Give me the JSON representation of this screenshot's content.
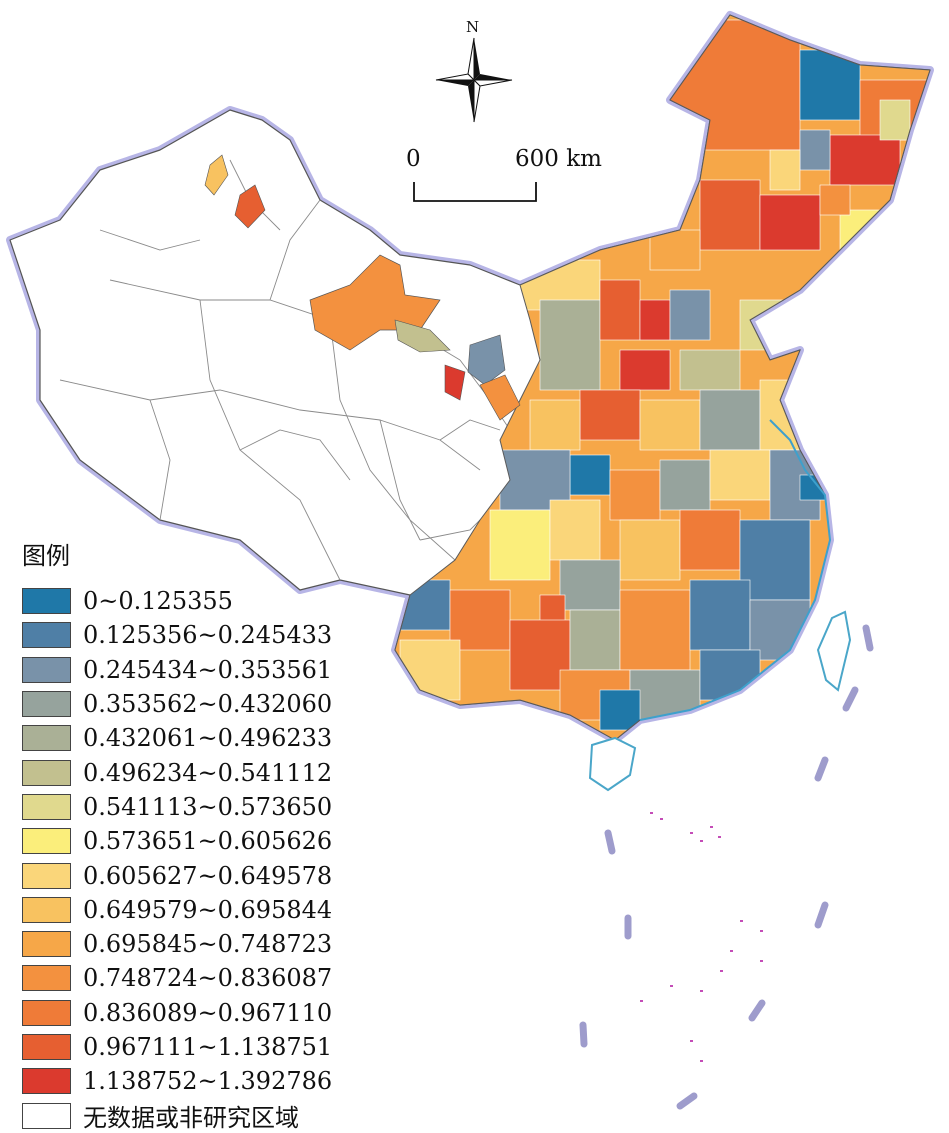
{
  "compass": {
    "north_label": "N"
  },
  "scale_bar": {
    "zero_label": "0",
    "max_label": "600 km"
  },
  "legend": {
    "title": "图例",
    "items": [
      {
        "label": "0~0.125355",
        "color": "#1f78a8"
      },
      {
        "label": "0.125356~0.245433",
        "color": "#4f7fa6"
      },
      {
        "label": "0.245434~0.353561",
        "color": "#7992a9"
      },
      {
        "label": "0.353562~0.432060",
        "color": "#96a39d"
      },
      {
        "label": "0.432061~0.496233",
        "color": "#aab096"
      },
      {
        "label": "0.496234~0.541112",
        "color": "#c2c08f"
      },
      {
        "label": "0.541113~0.573650",
        "color": "#e0d98e"
      },
      {
        "label": "0.573651~0.605626",
        "color": "#fbee7b"
      },
      {
        "label": "0.605627~0.649578",
        "color": "#fad67a"
      },
      {
        "label": "0.649579~0.695844",
        "color": "#f8c260"
      },
      {
        "label": "0.695845~0.748723",
        "color": "#f6a748"
      },
      {
        "label": "0.748724~0.836087",
        "color": "#f3913f"
      },
      {
        "label": "0.836089~0.967110",
        "color": "#ef7b38"
      },
      {
        "label": "0.967111~1.138751",
        "color": "#e65f31"
      },
      {
        "label": "1.138752~1.392786",
        "color": "#db3a2e"
      },
      {
        "label": "无数据或非研究区域",
        "color": "#ffffff"
      }
    ]
  }
}
